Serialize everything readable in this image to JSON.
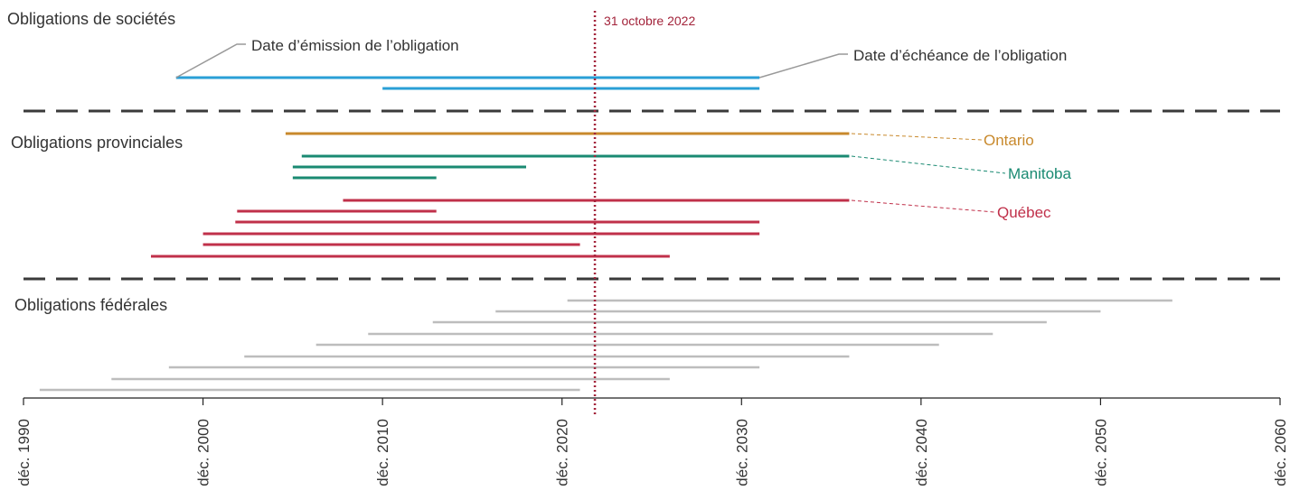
{
  "colors": {
    "corporate": "#2a9fd6",
    "ontario": "#c8892c",
    "manitoba": "#1a8a72",
    "quebec": "#c0304a",
    "federal": "#bdbdbd",
    "marker": "#a3243b",
    "separator": "#3a3a3a",
    "text": "#333333",
    "callout": "#999999"
  },
  "chart_data": {
    "type": "range-bar",
    "xlim": [
      1990,
      2060
    ],
    "x_ticks": [
      1990,
      2000,
      2010,
      2020,
      2030,
      2040,
      2050,
      2060
    ],
    "x_tick_labels": [
      "déc. 1990",
      "déc. 2000",
      "déc. 2010",
      "déc. 2020",
      "déc. 2030",
      "déc. 2040",
      "déc. 2050",
      "déc. 2060"
    ],
    "reference_line": {
      "x": 2021.83,
      "label": "31 octobre 2022"
    },
    "groups": [
      {
        "label": "Obligations de sociétés",
        "series": [
          {
            "name": "",
            "color_key": "corporate",
            "bonds": [
              {
                "issue": 1998.5,
                "maturity": 2031
              },
              {
                "issue": 2010,
                "maturity": 2031
              }
            ]
          }
        ],
        "annotations": {
          "issue": "Date d’émission de l’obligation",
          "maturity": "Date d’échéance de l’obligation"
        }
      },
      {
        "label": "Obligations provinciales",
        "series": [
          {
            "name": "Ontario",
            "color_key": "ontario",
            "bonds": [
              {
                "issue": 2004.6,
                "maturity": 2036
              }
            ]
          },
          {
            "name": "Manitoba",
            "color_key": "manitoba",
            "bonds": [
              {
                "issue": 2005.5,
                "maturity": 2036
              },
              {
                "issue": 2005,
                "maturity": 2018
              },
              {
                "issue": 2005,
                "maturity": 2013
              }
            ]
          },
          {
            "name": "Québec",
            "color_key": "quebec",
            "bonds": [
              {
                "issue": 2007.8,
                "maturity": 2036
              },
              {
                "issue": 2001.9,
                "maturity": 2013
              },
              {
                "issue": 2001.8,
                "maturity": 2031
              },
              {
                "issue": 2000,
                "maturity": 2031
              },
              {
                "issue": 2000,
                "maturity": 2021
              },
              {
                "issue": 1997.1,
                "maturity": 2026
              }
            ]
          }
        ]
      },
      {
        "label": "Obligations fédérales",
        "series": [
          {
            "name": "",
            "color_key": "federal",
            "bonds": [
              {
                "issue": 2020.3,
                "maturity": 2054
              },
              {
                "issue": 2016.3,
                "maturity": 2050
              },
              {
                "issue": 2012.8,
                "maturity": 2047
              },
              {
                "issue": 2009.2,
                "maturity": 2044
              },
              {
                "issue": 2006.3,
                "maturity": 2041
              },
              {
                "issue": 2002.3,
                "maturity": 2036
              },
              {
                "issue": 1998.1,
                "maturity": 2031
              },
              {
                "issue": 1994.9,
                "maturity": 2026
              },
              {
                "issue": 1990.9,
                "maturity": 2021
              }
            ]
          }
        ]
      }
    ]
  }
}
